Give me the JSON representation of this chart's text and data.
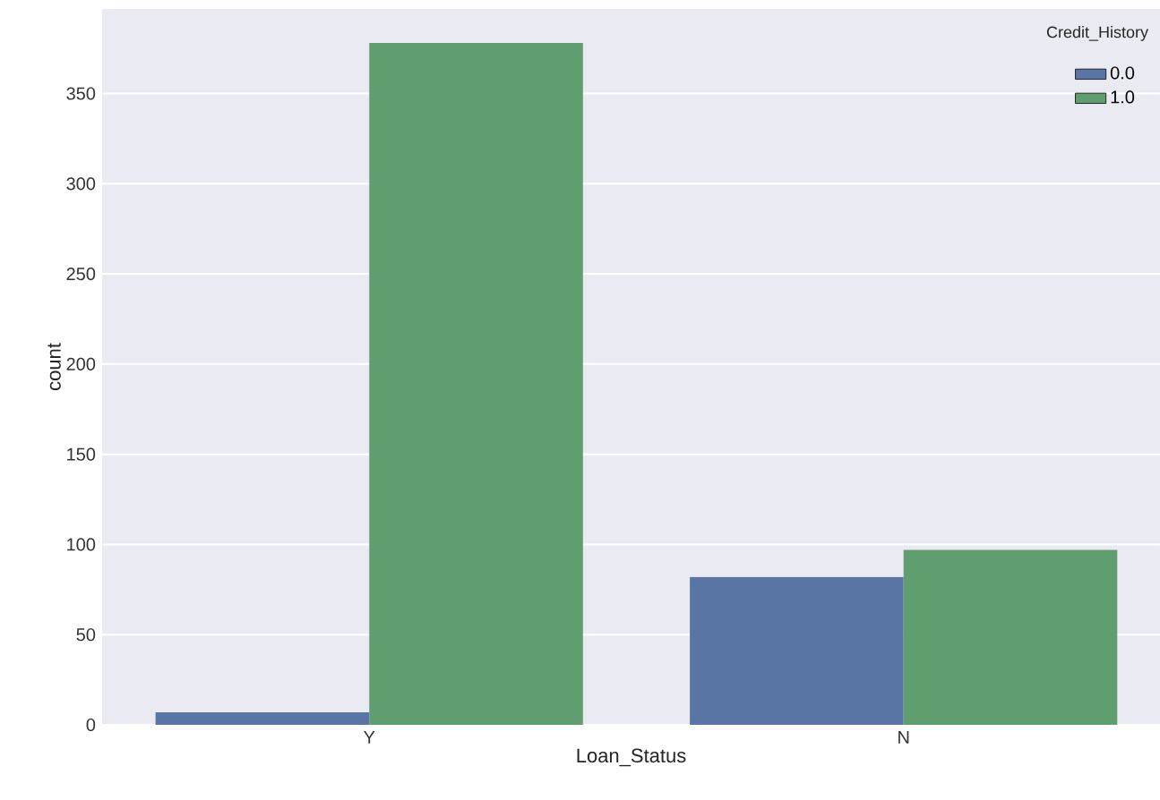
{
  "chart_data": {
    "type": "bar",
    "xlabel": "Loan_Status",
    "ylabel": "count",
    "legend_title": "Credit_History",
    "categories": [
      "Y",
      "N"
    ],
    "series": [
      {
        "name": "0.0",
        "color": "#5975a4",
        "values": [
          7,
          82
        ]
      },
      {
        "name": "1.0",
        "color": "#5f9e6e",
        "values": [
          378,
          97
        ]
      }
    ],
    "ylim": [
      0,
      396.9
    ],
    "yticks": [
      0,
      50,
      100,
      150,
      200,
      250,
      300,
      350
    ],
    "grid": "y",
    "legend": "top right"
  }
}
